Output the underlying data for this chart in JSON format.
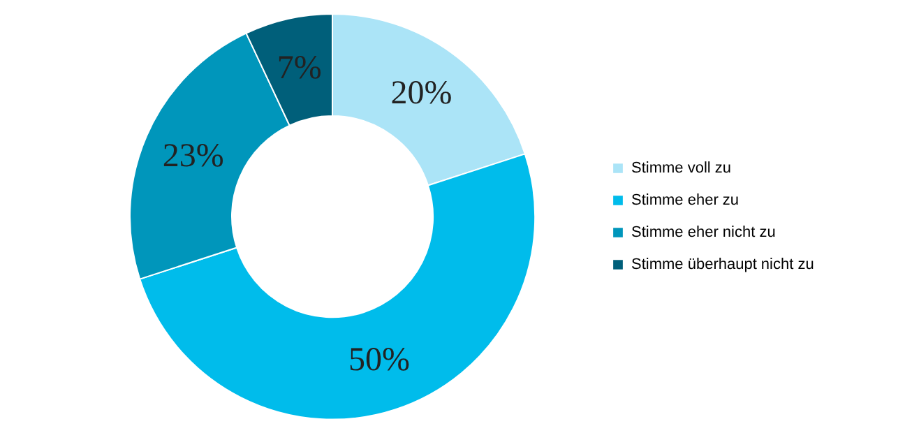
{
  "chart_data": {
    "type": "donut",
    "categories": [
      "Stimme voll zu",
      "Stimme eher zu",
      "Stimme eher nicht zu",
      "Stimme überhaupt nicht zu"
    ],
    "values": [
      20,
      50,
      23,
      7
    ],
    "colors": [
      "#abe4f7",
      "#00bceb",
      "#0096bb",
      "#005f7a"
    ],
    "value_labels": [
      "20%",
      "50%",
      "23%",
      "7%"
    ],
    "legend": "right"
  }
}
